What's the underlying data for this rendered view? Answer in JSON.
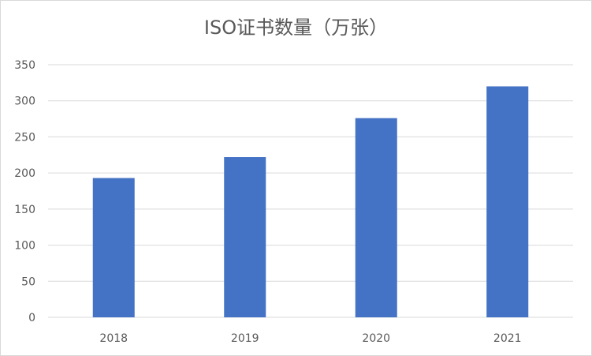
{
  "chart_data": {
    "type": "bar",
    "title": "ISO证书数量（万张）",
    "categories": [
      "2018",
      "2019",
      "2020",
      "2021"
    ],
    "values": [
      193,
      222,
      276,
      320
    ],
    "ylim": [
      0,
      350
    ],
    "yticks": [
      "0",
      "50",
      "100",
      "150",
      "200",
      "250",
      "300",
      "350"
    ],
    "xlabel": "",
    "ylabel": "",
    "grid": true,
    "legend": "none",
    "colors": {
      "bar": "#4472c4",
      "grid": "#d9d9d9",
      "text": "#595959"
    }
  }
}
